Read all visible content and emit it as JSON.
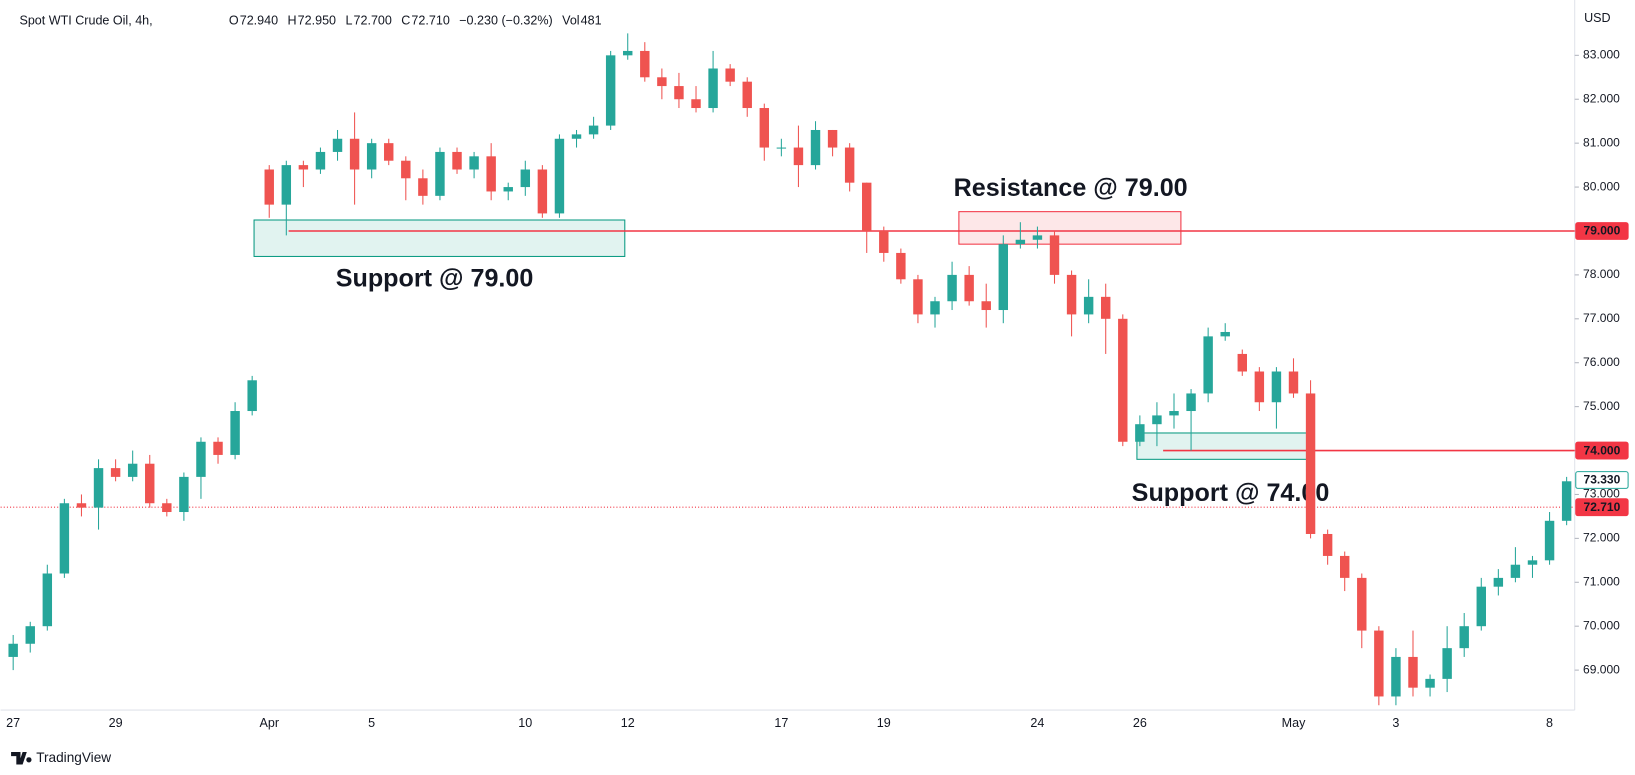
{
  "chart_data": {
    "type": "candlestick",
    "header": {
      "symbol": "Spot WTI Crude Oil, 4h,",
      "legend_items": [
        {
          "key": "O",
          "value": "72.940"
        },
        {
          "key": "H",
          "value": "72.950"
        },
        {
          "key": "L",
          "value": "72.700"
        },
        {
          "key": "C",
          "value": "72.710"
        }
      ],
      "change": "−0.230 (−0.32%)",
      "volume_key": "Vol",
      "volume": "481"
    },
    "currency": "USD",
    "footer": "TradingView",
    "up_color": "#26a69a",
    "down_color": "#ef5350",
    "categories": [
      "27",
      null,
      null,
      null,
      null,
      null,
      "29",
      null,
      null,
      null,
      null,
      null,
      null,
      null,
      null,
      "Apr",
      null,
      null,
      null,
      null,
      null,
      "5",
      null,
      null,
      null,
      null,
      null,
      null,
      null,
      null,
      "10",
      null,
      null,
      null,
      null,
      null,
      "12",
      null,
      null,
      null,
      null,
      null,
      null,
      null,
      null,
      "17",
      null,
      null,
      null,
      null,
      null,
      "19",
      null,
      null,
      null,
      null,
      null,
      null,
      null,
      null,
      "24",
      null,
      null,
      null,
      null,
      null,
      "26",
      null,
      null,
      null,
      null,
      null,
      null,
      null,
      null,
      "May",
      null,
      null,
      null,
      null,
      null,
      "3",
      null,
      null,
      null,
      null,
      null,
      null,
      null,
      null,
      "8",
      null
    ],
    "ohlc": [
      [
        69.3,
        69.8,
        69.0,
        69.6
      ],
      [
        69.6,
        70.1,
        69.4,
        70.0
      ],
      [
        70.0,
        71.4,
        69.9,
        71.2
      ],
      [
        71.2,
        72.9,
        71.1,
        72.8
      ],
      [
        72.8,
        73.0,
        72.5,
        72.7
      ],
      [
        72.7,
        73.8,
        72.2,
        73.6
      ],
      [
        73.6,
        73.8,
        73.3,
        73.4
      ],
      [
        73.4,
        74.0,
        73.3,
        73.7
      ],
      [
        73.7,
        73.9,
        72.7,
        72.8
      ],
      [
        72.8,
        72.9,
        72.5,
        72.6
      ],
      [
        72.6,
        73.5,
        72.4,
        73.4
      ],
      [
        73.4,
        74.3,
        72.9,
        74.2
      ],
      [
        74.2,
        74.3,
        73.7,
        73.9
      ],
      [
        73.9,
        75.1,
        73.8,
        74.9
      ],
      [
        74.9,
        75.7,
        74.8,
        75.6
      ],
      [
        80.4,
        80.5,
        79.3,
        79.6
      ],
      [
        79.6,
        80.6,
        78.9,
        80.5
      ],
      [
        80.5,
        80.6,
        80.0,
        80.4
      ],
      [
        80.4,
        80.9,
        80.3,
        80.8
      ],
      [
        80.8,
        81.3,
        80.6,
        81.1
      ],
      [
        81.1,
        81.7,
        79.6,
        80.4
      ],
      [
        80.4,
        81.1,
        80.2,
        81.0
      ],
      [
        81.0,
        81.1,
        80.5,
        80.6
      ],
      [
        80.6,
        80.7,
        79.7,
        80.2
      ],
      [
        80.2,
        80.4,
        79.6,
        79.8
      ],
      [
        79.8,
        80.9,
        79.7,
        80.8
      ],
      [
        80.8,
        80.9,
        80.3,
        80.4
      ],
      [
        80.4,
        80.8,
        80.2,
        80.7
      ],
      [
        80.7,
        81.0,
        79.7,
        79.9
      ],
      [
        79.9,
        80.1,
        79.7,
        80.0
      ],
      [
        80.0,
        80.6,
        79.8,
        80.4
      ],
      [
        80.4,
        80.5,
        79.3,
        79.4
      ],
      [
        79.4,
        81.2,
        79.3,
        81.1
      ],
      [
        81.1,
        81.3,
        80.9,
        81.2
      ],
      [
        81.2,
        81.6,
        81.1,
        81.4
      ],
      [
        81.4,
        83.1,
        81.3,
        83.0
      ],
      [
        83.0,
        83.5,
        82.9,
        83.1
      ],
      [
        83.1,
        83.3,
        82.4,
        82.5
      ],
      [
        82.5,
        82.7,
        82.0,
        82.3
      ],
      [
        82.3,
        82.6,
        81.8,
        82.0
      ],
      [
        82.0,
        82.3,
        81.7,
        81.8
      ],
      [
        81.8,
        83.1,
        81.7,
        82.7
      ],
      [
        82.7,
        82.8,
        82.3,
        82.4
      ],
      [
        82.4,
        82.5,
        81.6,
        81.8
      ],
      [
        81.8,
        81.9,
        80.6,
        80.9
      ],
      [
        80.9,
        81.1,
        80.7,
        80.9
      ],
      [
        80.9,
        81.4,
        80.0,
        80.5
      ],
      [
        80.5,
        81.5,
        80.4,
        81.3
      ],
      [
        81.3,
        81.3,
        80.7,
        80.9
      ],
      [
        80.9,
        81.0,
        79.9,
        80.1
      ],
      [
        80.1,
        80.1,
        78.5,
        79.0
      ],
      [
        79.0,
        79.1,
        78.3,
        78.5
      ],
      [
        78.5,
        78.6,
        77.8,
        77.9
      ],
      [
        77.9,
        78.0,
        76.9,
        77.1
      ],
      [
        77.1,
        77.5,
        76.8,
        77.4
      ],
      [
        77.4,
        78.3,
        77.2,
        78.0
      ],
      [
        78.0,
        78.2,
        77.3,
        77.4
      ],
      [
        77.4,
        77.8,
        76.8,
        77.2
      ],
      [
        77.2,
        78.9,
        76.9,
        78.7
      ],
      [
        78.7,
        79.2,
        78.6,
        78.8
      ],
      [
        78.8,
        79.1,
        78.6,
        78.9
      ],
      [
        78.9,
        79.0,
        77.8,
        78.0
      ],
      [
        78.0,
        78.1,
        76.6,
        77.1
      ],
      [
        77.1,
        77.9,
        76.9,
        77.5
      ],
      [
        77.5,
        77.8,
        76.2,
        77.0
      ],
      [
        77.0,
        77.1,
        74.1,
        74.2
      ],
      [
        74.2,
        74.8,
        74.1,
        74.6
      ],
      [
        74.6,
        75.1,
        74.1,
        74.8
      ],
      [
        74.8,
        75.3,
        74.5,
        74.9
      ],
      [
        74.9,
        75.4,
        74.0,
        75.3
      ],
      [
        75.3,
        76.8,
        75.1,
        76.6
      ],
      [
        76.6,
        76.9,
        76.5,
        76.7
      ],
      [
        76.2,
        76.3,
        75.7,
        75.8
      ],
      [
        75.8,
        75.9,
        74.9,
        75.1
      ],
      [
        75.1,
        75.9,
        74.5,
        75.8
      ],
      [
        75.8,
        76.1,
        75.2,
        75.3
      ],
      [
        75.3,
        75.6,
        72.0,
        72.1
      ],
      [
        72.1,
        72.2,
        71.4,
        71.6
      ],
      [
        71.6,
        71.7,
        70.8,
        71.1
      ],
      [
        71.1,
        71.2,
        69.5,
        69.9
      ],
      [
        69.9,
        70.0,
        68.2,
        68.4
      ],
      [
        68.4,
        69.5,
        68.2,
        69.3
      ],
      [
        69.3,
        69.9,
        68.4,
        68.6
      ],
      [
        68.6,
        68.9,
        68.4,
        68.8
      ],
      [
        68.8,
        70.0,
        68.5,
        69.5
      ],
      [
        69.5,
        70.3,
        69.3,
        70.0
      ],
      [
        70.0,
        71.1,
        69.9,
        70.9
      ],
      [
        70.9,
        71.3,
        70.7,
        71.1
      ],
      [
        71.1,
        71.8,
        71.0,
        71.4
      ],
      [
        71.4,
        71.6,
        71.1,
        71.5
      ],
      [
        71.5,
        72.6,
        71.4,
        72.4
      ],
      [
        72.4,
        73.4,
        72.3,
        73.3
      ]
    ],
    "ylim": [
      68.09,
      84.26
    ],
    "yticks": [
      {
        "value": 69,
        "label": "69.000"
      },
      {
        "value": 70,
        "label": "70.000"
      },
      {
        "value": 71,
        "label": "71.000"
      },
      {
        "value": 72,
        "label": "72.000"
      },
      {
        "value": 73,
        "label": "73.000"
      },
      {
        "value": 74,
        "label": "74.000"
      },
      {
        "value": 75,
        "label": "75.000"
      },
      {
        "value": 76,
        "label": "76.000"
      },
      {
        "value": 77,
        "label": "77.000"
      },
      {
        "value": 78,
        "label": "78.000"
      },
      {
        "value": 79,
        "label": "79.000"
      },
      {
        "value": 80,
        "label": "80.000"
      },
      {
        "value": 81,
        "label": "81.000"
      },
      {
        "value": 82,
        "label": "82.000"
      },
      {
        "value": 83,
        "label": "83.000"
      }
    ],
    "grid": false,
    "levels": [
      {
        "value": 79,
        "label": "79.000",
        "color": "#f23645"
      },
      {
        "value": 74,
        "label": "74.000",
        "color": "#f23645"
      }
    ],
    "marker": {
      "value": 73.33,
      "label": "73.330",
      "color": "#26a69a"
    },
    "last_price": {
      "value": 72.71,
      "label": "72.710",
      "color": "#f23645"
    },
    "annotations": [
      {
        "text": "Support @ 79.00",
        "color": "#089981",
        "ylim": [
          78.42,
          79.25
        ]
      },
      {
        "text": "Resistance @ 79.00",
        "color": "#f23645",
        "ylim": [
          78.7,
          79.44
        ]
      },
      {
        "text": "Support @ 74.00",
        "color": "#089981",
        "ylim": [
          73.8,
          74.4
        ]
      }
    ]
  }
}
